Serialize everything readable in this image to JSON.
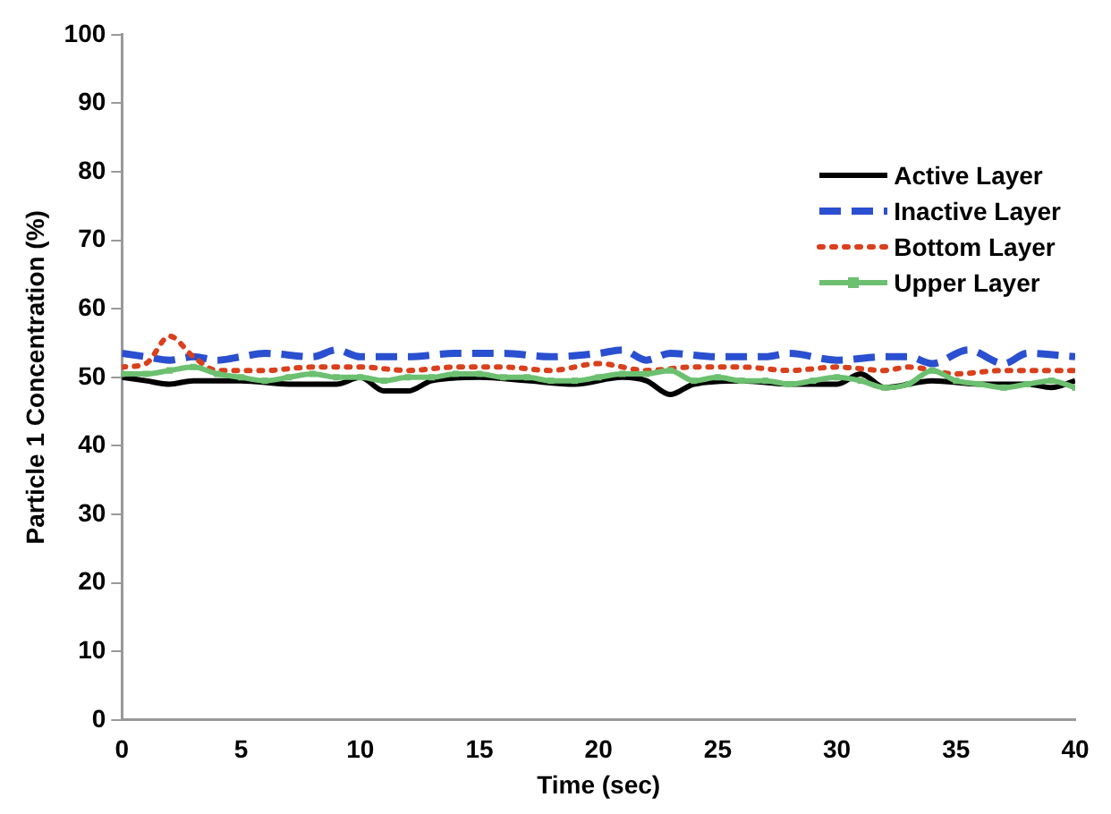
{
  "chart_data": {
    "type": "line",
    "xlabel": "Time (sec)",
    "ylabel": "Particle 1 Concentration (%)",
    "xlim": [
      0,
      40
    ],
    "xticks": [
      0,
      5,
      10,
      15,
      20,
      25,
      30,
      35,
      40
    ],
    "ylim": [
      0,
      100
    ],
    "yticks": [
      0,
      10,
      20,
      30,
      40,
      50,
      60,
      70,
      80,
      90,
      100
    ],
    "grid": false,
    "legend": "top right",
    "marker": "none",
    "series": [
      {
        "name": "Active Layer",
        "color": "#000000",
        "line_style": "solid",
        "x": [
          0,
          1,
          2,
          3,
          5,
          7,
          9,
          10,
          11,
          12,
          13,
          15,
          17,
          19,
          21,
          22,
          23,
          24,
          26,
          28,
          30,
          31,
          32,
          34,
          36,
          38,
          39,
          40
        ],
        "values": [
          50,
          49.5,
          49,
          49.5,
          49.5,
          49,
          49,
          50,
          48,
          48,
          49.5,
          50,
          49.5,
          49,
          50,
          49.5,
          47.5,
          49,
          49.5,
          49,
          49,
          50.5,
          48.5,
          49.5,
          49,
          49,
          48.5,
          49.5
        ]
      },
      {
        "name": "Inactive Layer",
        "color": "#2a4fd0",
        "line_style": "dashed",
        "x": [
          0,
          1,
          2,
          3,
          4,
          5,
          6,
          8,
          9,
          10,
          12,
          14,
          16,
          18,
          20,
          21,
          22,
          23,
          25,
          27,
          28,
          30,
          32,
          33,
          34,
          35.5,
          37,
          38,
          40
        ],
        "values": [
          53.5,
          53,
          52.5,
          53,
          52.5,
          53,
          53.5,
          53,
          54,
          53,
          53,
          53.5,
          53.5,
          53,
          53.5,
          54,
          52.5,
          53.5,
          53,
          53,
          53.5,
          52.5,
          53,
          53,
          52,
          54,
          52,
          53.5,
          53
        ]
      },
      {
        "name": "Bottom Layer",
        "color": "#d9401c",
        "line_style": "dotted",
        "x": [
          0,
          1,
          2,
          3,
          4,
          6,
          8,
          10,
          12,
          14,
          16,
          18,
          20,
          22,
          24,
          26,
          28,
          30,
          32,
          33,
          35,
          37,
          40
        ],
        "values": [
          51.5,
          52,
          56,
          53,
          51,
          51,
          51.5,
          51.5,
          51,
          51.5,
          51.5,
          51,
          52,
          51,
          51.5,
          51.5,
          51,
          51.5,
          51,
          51.5,
          50.5,
          51,
          51
        ]
      },
      {
        "name": "Upper Layer",
        "color": "#6cc070",
        "line_style": "solid",
        "marker": "square",
        "x": [
          0,
          1,
          2,
          3,
          4,
          5,
          6,
          7,
          8,
          9,
          10,
          11,
          12,
          13,
          14,
          15,
          16,
          17,
          18,
          19,
          20,
          21,
          22,
          23,
          24,
          25,
          26,
          27,
          28,
          29,
          30,
          31,
          32,
          33,
          34,
          35,
          36,
          37,
          38,
          39,
          40
        ],
        "values": [
          50.5,
          50.5,
          51,
          51.5,
          50.5,
          50,
          49.5,
          50,
          50.5,
          50,
          50,
          49.5,
          50,
          50,
          50.5,
          50.5,
          50,
          50,
          49.5,
          49.5,
          50,
          50.5,
          50.5,
          51,
          49.5,
          50,
          49.5,
          49.5,
          49,
          49.5,
          50,
          49.5,
          48.5,
          49,
          51,
          49.5,
          49,
          48.5,
          49,
          49.5,
          48.5
        ]
      }
    ]
  }
}
